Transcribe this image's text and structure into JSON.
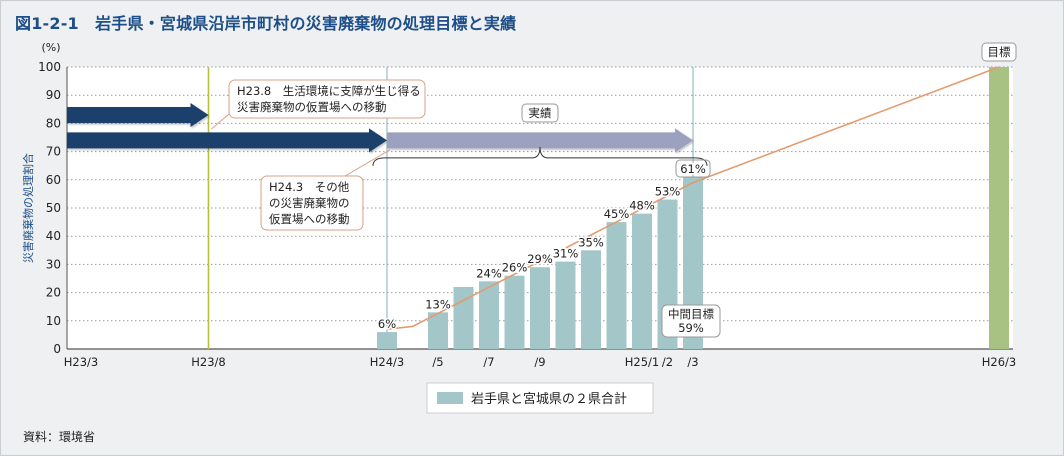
{
  "title": "図1-2-1　岩手県・宮城県沿岸市町村の災害廃棄物の処理目標と実績",
  "source": "資料：環境省",
  "chart_data": {
    "type": "bar",
    "ylabel": "災害廃棄物の処理割合",
    "yunit": "(%)",
    "ylim": [
      0,
      100
    ],
    "yticks": [
      0,
      10,
      20,
      30,
      40,
      50,
      60,
      70,
      80,
      90,
      100
    ],
    "grid": "horizontal dotted",
    "xtick_labels": [
      {
        "label": "H23/3",
        "month": 0
      },
      {
        "label": "H23/8",
        "month": 5
      },
      {
        "label": "H24/3",
        "month": 12
      },
      {
        "label": "/5",
        "month": 14
      },
      {
        "label": "/7",
        "month": 16
      },
      {
        "label": "/9",
        "month": 18
      },
      {
        "label": "H25/1",
        "month": 22
      },
      {
        "label": "/2",
        "month": 23
      },
      {
        "label": "/3",
        "month": 24
      },
      {
        "label": "H26/3",
        "month": 36
      }
    ],
    "series": [
      {
        "name": "岩手県と宮城県の２県合計",
        "color": "#a3c7c9",
        "points": [
          {
            "month": 12,
            "value": 6,
            "label": "6%"
          },
          {
            "month": 14,
            "value": 13,
            "label": "13%"
          },
          {
            "month": 15,
            "value": 22
          },
          {
            "month": 16,
            "value": 24,
            "label": "24%"
          },
          {
            "month": 17,
            "value": 26,
            "label": "26%"
          },
          {
            "month": 18,
            "value": 29,
            "label": "29%"
          },
          {
            "month": 19,
            "value": 31,
            "label": "31%"
          },
          {
            "month": 20,
            "value": 35,
            "label": "35%"
          },
          {
            "month": 21,
            "value": 45,
            "label": "45%"
          },
          {
            "month": 22,
            "value": 48,
            "label": "48%"
          },
          {
            "month": 23,
            "value": 53,
            "label": "53%"
          },
          {
            "month": 24,
            "value": 61,
            "label": "61%"
          }
        ]
      }
    ],
    "target": {
      "month": 36,
      "value": 100,
      "label": "目標",
      "color": "#a8c283"
    },
    "target_line": {
      "color": "#e49a6e",
      "points": [
        [
          12,
          7
        ],
        [
          13,
          8
        ],
        [
          24,
          59
        ],
        [
          36,
          100
        ]
      ]
    },
    "midterm": {
      "month": 24,
      "value": 59,
      "label1": "中間目標",
      "label2": "59%"
    },
    "vlines": [
      {
        "month": 5,
        "color": "#b5c23a"
      },
      {
        "month": 12,
        "color": "#8fb6bd"
      },
      {
        "month": 24,
        "color": "#8fb6bd"
      }
    ],
    "phase_arrows": [
      {
        "from_month": -1,
        "to_month": 5,
        "y": 83,
        "color": "#1c3f6c"
      },
      {
        "from_month": -1,
        "to_month": 12,
        "y": 74,
        "color": "#1c3f6c"
      },
      {
        "from_month": 12,
        "to_month": 24,
        "y": 74,
        "color": "#9da1c0"
      }
    ],
    "brace": {
      "from_month": 12,
      "to_month": 24,
      "y": 66,
      "label": "実績"
    },
    "annotations": [
      {
        "month": 5,
        "value": 83,
        "line1": "H23.8　生活環境に支障が生じ得る",
        "line2": "災害廃棄物の仮置場への移動"
      },
      {
        "month": 12,
        "value": 71,
        "line1": "H24.3　その他",
        "line2": "の災害廃棄物の",
        "line3": "仮置場への移動"
      }
    ],
    "legend": {
      "position": "bottom-center",
      "label": "岩手県と宮城県の２県合計"
    }
  }
}
